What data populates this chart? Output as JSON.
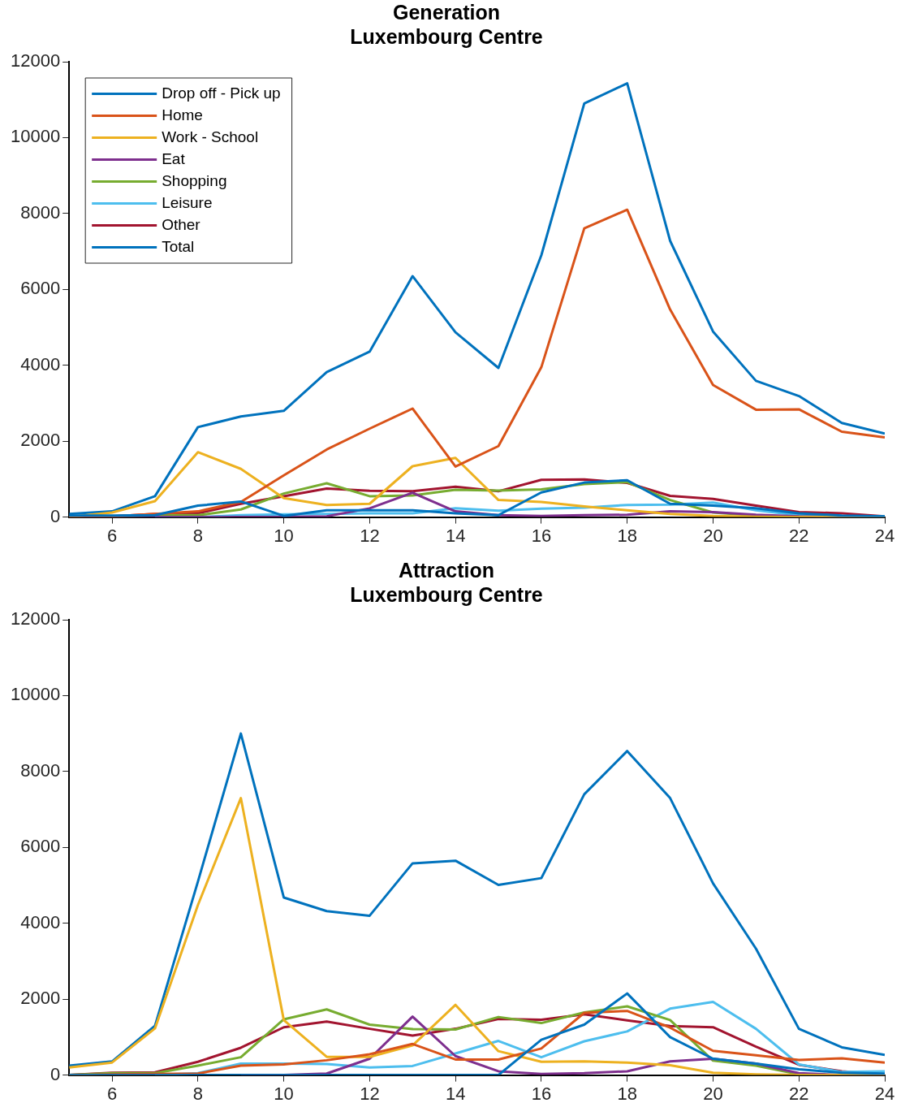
{
  "chart_data": [
    {
      "type": "line",
      "title": "Generation",
      "subtitle": "Luxembourg Centre",
      "x": [
        5,
        6,
        7,
        8,
        9,
        10,
        11,
        12,
        13,
        14,
        15,
        16,
        17,
        18,
        19,
        20,
        21,
        22,
        23,
        24
      ],
      "xlim": [
        5,
        24
      ],
      "xticks": [
        6,
        8,
        10,
        12,
        14,
        16,
        18,
        20,
        22,
        24
      ],
      "ylim": [
        0,
        12000
      ],
      "yticks": [
        0,
        2000,
        4000,
        6000,
        8000,
        10000,
        12000
      ],
      "grid": false,
      "legend": "top left",
      "marker": "none",
      "line_style": "solid",
      "series": [
        {
          "name": "Drop off - Pick up",
          "color": "#0072bd",
          "values": [
            40,
            40,
            50,
            300,
            410,
            30,
            180,
            180,
            180,
            100,
            50,
            650,
            910,
            970,
            350,
            300,
            230,
            100,
            40,
            20
          ]
        },
        {
          "name": "Home",
          "color": "#d95319",
          "values": [
            0,
            20,
            80,
            150,
            400,
            1100,
            1780,
            2330,
            2860,
            1330,
            1870,
            3950,
            7610,
            8100,
            5470,
            3480,
            2830,
            2840,
            2250,
            2100
          ]
        },
        {
          "name": "Work - School",
          "color": "#edb120",
          "values": [
            0,
            120,
            420,
            1710,
            1270,
            500,
            320,
            350,
            1340,
            1560,
            450,
            400,
            280,
            180,
            80,
            30,
            10,
            0,
            0,
            0
          ]
        },
        {
          "name": "Eat",
          "color": "#7e2f8e",
          "values": [
            0,
            0,
            0,
            0,
            0,
            0,
            20,
            230,
            640,
            150,
            50,
            30,
            50,
            60,
            150,
            130,
            60,
            20,
            10,
            0
          ]
        },
        {
          "name": "Shopping",
          "color": "#77ac30",
          "values": [
            0,
            0,
            50,
            50,
            200,
            620,
            890,
            550,
            570,
            720,
            700,
            730,
            870,
            920,
            450,
            120,
            40,
            10,
            0,
            0
          ]
        },
        {
          "name": "Leisure",
          "color": "#4dbeee",
          "values": [
            null,
            null,
            0,
            0,
            50,
            70,
            80,
            100,
            100,
            230,
            170,
            220,
            250,
            320,
            330,
            380,
            180,
            50,
            20,
            20
          ]
        },
        {
          "name": "Other",
          "color": "#a2142f",
          "values": [
            0,
            20,
            80,
            100,
            350,
            550,
            750,
            690,
            680,
            800,
            680,
            980,
            990,
            900,
            560,
            480,
            300,
            130,
            100,
            20
          ]
        },
        {
          "name": "Total",
          "color": "#0072bd",
          "values": [
            80,
            150,
            550,
            2370,
            2650,
            2800,
            3820,
            4360,
            6350,
            4870,
            3930,
            6900,
            10900,
            11430,
            7280,
            4890,
            3590,
            3190,
            2480,
            2200
          ]
        }
      ]
    },
    {
      "type": "line",
      "title": "Attraction",
      "subtitle": "Luxembourg Centre",
      "x": [
        5,
        6,
        7,
        8,
        9,
        10,
        11,
        12,
        13,
        14,
        15,
        16,
        17,
        18,
        19,
        20,
        21,
        22,
        23,
        24
      ],
      "xlim": [
        5,
        24
      ],
      "xticks": [
        6,
        8,
        10,
        12,
        14,
        16,
        18,
        20,
        22,
        24
      ],
      "ylim": [
        0,
        12000
      ],
      "yticks": [
        0,
        2000,
        4000,
        6000,
        8000,
        10000,
        12000
      ],
      "grid": false,
      "marker": "none",
      "line_style": "solid",
      "series": [
        {
          "color": "#0072bd",
          "values": [
            0,
            0,
            0,
            0,
            0,
            0,
            0,
            0,
            0,
            0,
            0,
            930,
            1330,
            2150,
            1000,
            430,
            300,
            150,
            60,
            40
          ]
        },
        {
          "color": "#d95319",
          "values": [
            0,
            20,
            30,
            40,
            250,
            280,
            390,
            550,
            820,
            410,
            410,
            700,
            1640,
            1690,
            1250,
            640,
            520,
            400,
            440,
            330
          ]
        },
        {
          "color": "#edb120",
          "values": [
            200,
            330,
            1230,
            4480,
            7300,
            1450,
            480,
            480,
            780,
            1850,
            630,
            350,
            360,
            330,
            260,
            60,
            20,
            0,
            0,
            0
          ]
        },
        {
          "color": "#7e2f8e",
          "values": [
            null,
            null,
            null,
            null,
            0,
            0,
            40,
            430,
            1540,
            500,
            100,
            30,
            50,
            100,
            360,
            430,
            300,
            50,
            0,
            0
          ]
        },
        {
          "color": "#77ac30",
          "values": [
            0,
            50,
            50,
            250,
            470,
            1470,
            1730,
            1330,
            1210,
            1200,
            1530,
            1370,
            1650,
            1810,
            1450,
            380,
            250,
            20,
            0,
            0
          ]
        },
        {
          "color": "#4dbeee",
          "values": [
            null,
            null,
            0,
            50,
            300,
            300,
            290,
            200,
            240,
            570,
            900,
            470,
            890,
            1150,
            1750,
            1930,
            1220,
            280,
            80,
            100
          ]
        },
        {
          "color": "#a2142f",
          "values": [
            0,
            60,
            70,
            350,
            720,
            1260,
            1410,
            1220,
            1040,
            1220,
            1480,
            1460,
            1600,
            1440,
            1290,
            1260,
            750,
            270,
            100,
            20
          ]
        },
        {
          "color": "#0072bd",
          "values": [
            250,
            360,
            1300,
            5100,
            9000,
            4680,
            4320,
            4200,
            5580,
            5650,
            5010,
            5190,
            7400,
            8540,
            7300,
            5050,
            3330,
            1220,
            730,
            530
          ]
        }
      ]
    }
  ]
}
